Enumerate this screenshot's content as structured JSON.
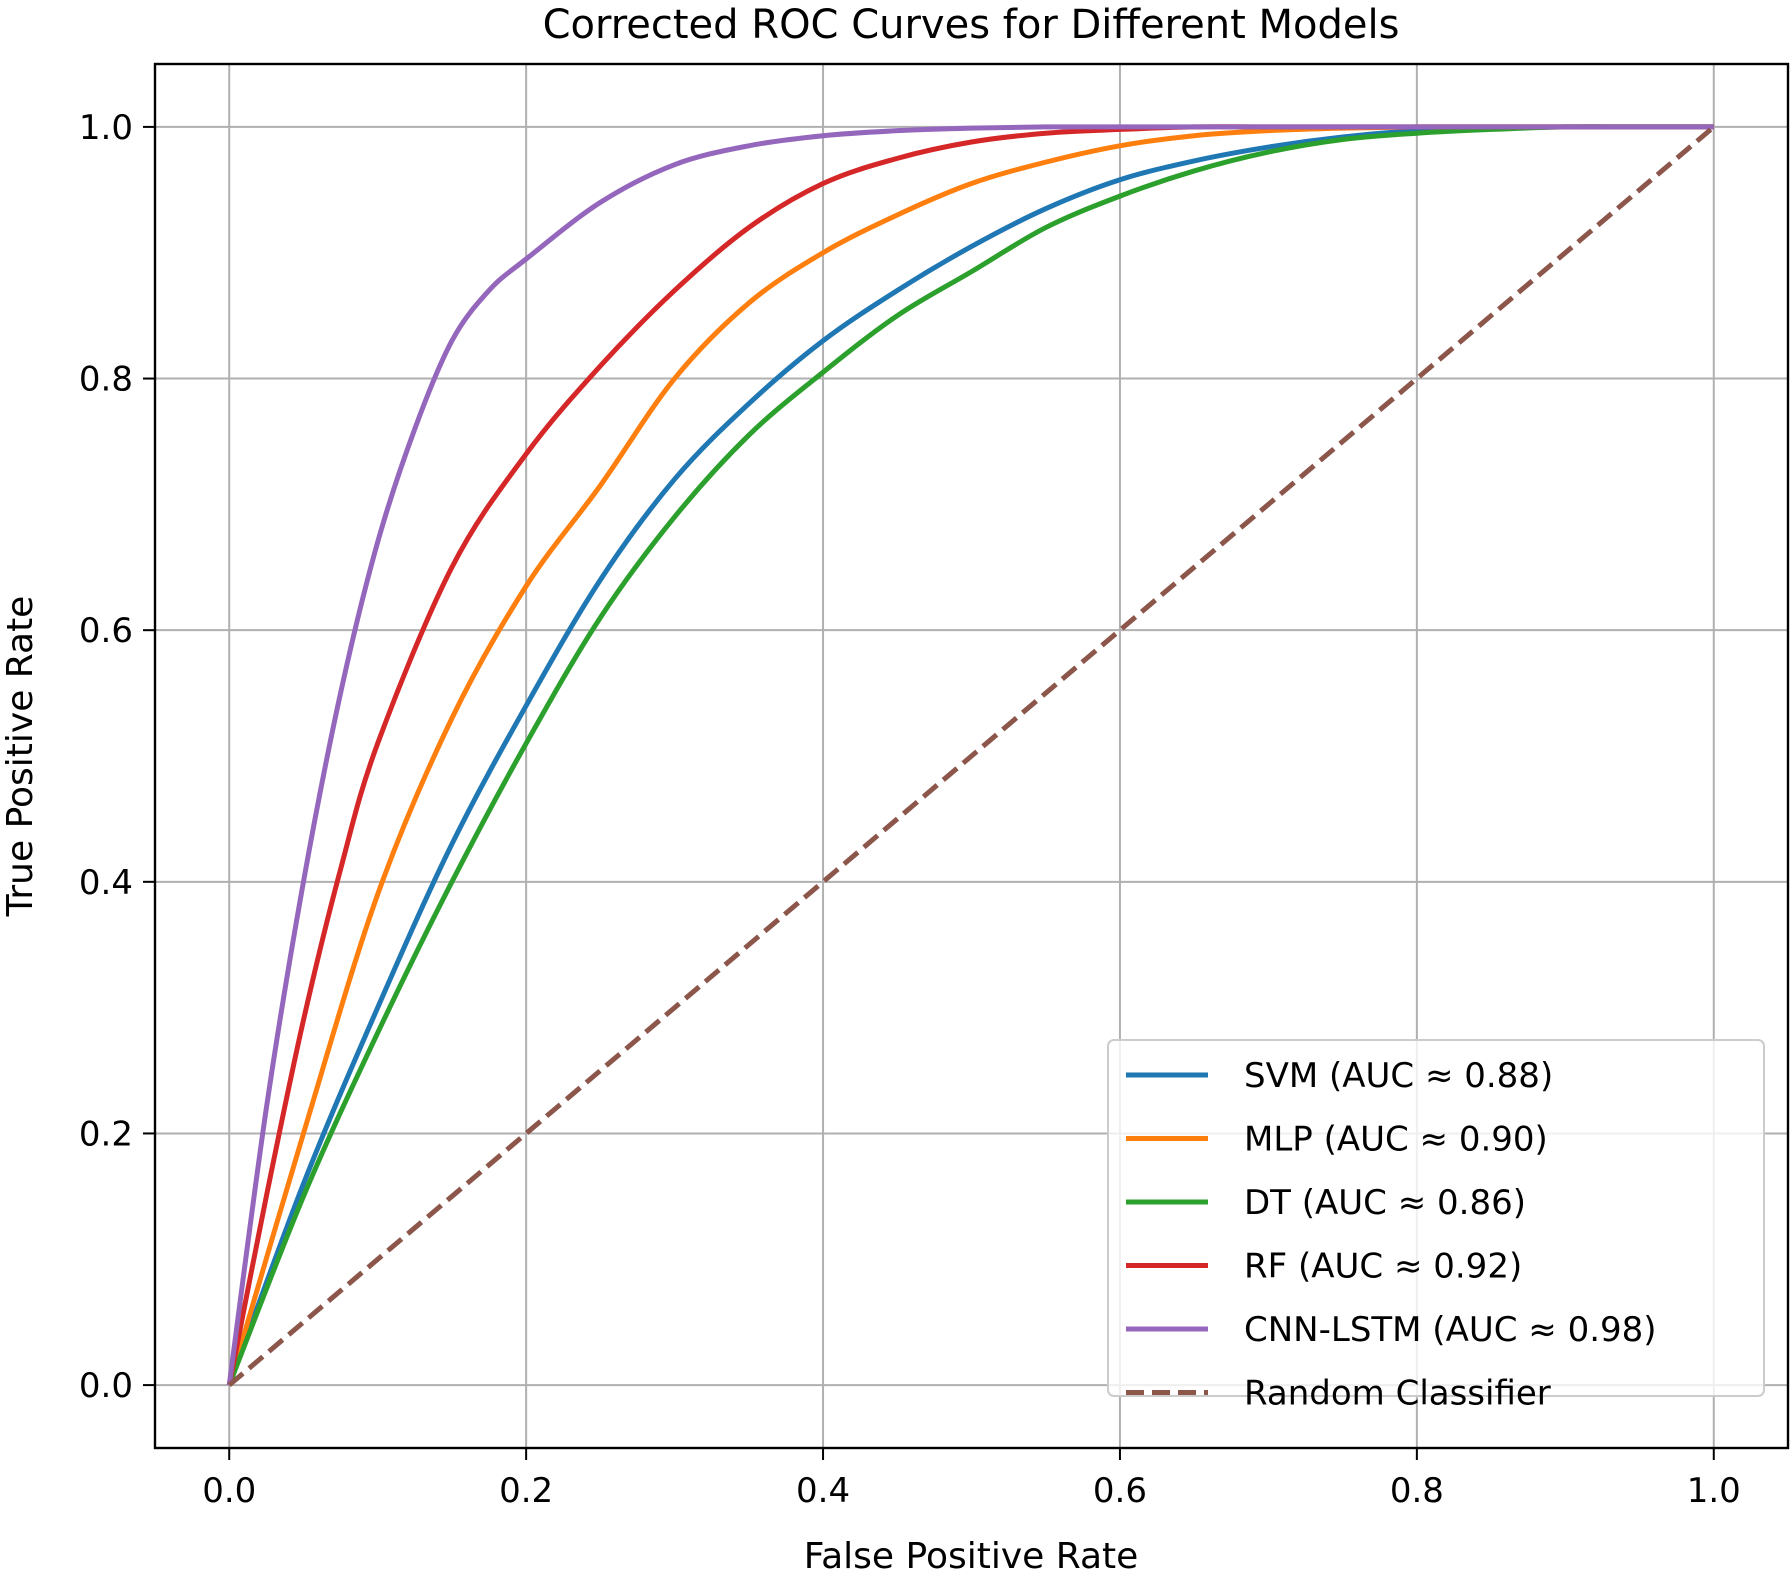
{
  "chart_data": {
    "type": "line",
    "title": "Corrected ROC Curves for Different Models",
    "xlabel": "False Positive Rate",
    "ylabel": "True Positive Rate",
    "xlim": [
      -0.05,
      1.05
    ],
    "ylim": [
      -0.05,
      1.05
    ],
    "xticks": [
      "0.0",
      "0.2",
      "0.4",
      "0.6",
      "0.8",
      "1.0"
    ],
    "yticks": [
      "0.0",
      "0.2",
      "0.4",
      "0.6",
      "0.8",
      "1.0"
    ],
    "grid": true,
    "legend_position": "lower right",
    "series": [
      {
        "name": "SVM (AUC ≈ 0.88)",
        "color": "#1f77b4",
        "style": "solid",
        "x": [
          0.0,
          0.05,
          0.1,
          0.15,
          0.2,
          0.25,
          0.3,
          0.35,
          0.4,
          0.45,
          0.5,
          0.55,
          0.6,
          0.65,
          0.7,
          0.75,
          0.8,
          0.85,
          0.9,
          0.95,
          1.0
        ],
        "y": [
          0.0,
          0.16,
          0.3,
          0.43,
          0.54,
          0.64,
          0.72,
          0.78,
          0.83,
          0.87,
          0.905,
          0.935,
          0.958,
          0.973,
          0.984,
          0.992,
          0.997,
          0.999,
          1.0,
          1.0,
          1.0
        ]
      },
      {
        "name": "MLP (AUC ≈ 0.90)",
        "color": "#ff7f0e",
        "style": "solid",
        "x": [
          0.0,
          0.05,
          0.1,
          0.15,
          0.2,
          0.25,
          0.3,
          0.35,
          0.4,
          0.45,
          0.5,
          0.55,
          0.6,
          0.65,
          0.7,
          0.75,
          0.8,
          0.85,
          0.9,
          0.95,
          1.0
        ],
        "y": [
          0.0,
          0.2,
          0.39,
          0.53,
          0.635,
          0.715,
          0.8,
          0.86,
          0.9,
          0.93,
          0.955,
          0.972,
          0.985,
          0.993,
          0.997,
          0.999,
          1.0,
          1.0,
          1.0,
          1.0,
          1.0
        ]
      },
      {
        "name": "DT (AUC ≈ 0.86)",
        "color": "#2ca02c",
        "style": "solid",
        "x": [
          0.0,
          0.05,
          0.1,
          0.15,
          0.2,
          0.25,
          0.3,
          0.35,
          0.4,
          0.45,
          0.5,
          0.55,
          0.6,
          0.65,
          0.7,
          0.75,
          0.8,
          0.85,
          0.9,
          0.95,
          1.0
        ],
        "y": [
          0.0,
          0.15,
          0.28,
          0.4,
          0.51,
          0.61,
          0.69,
          0.755,
          0.805,
          0.85,
          0.885,
          0.92,
          0.945,
          0.965,
          0.98,
          0.99,
          0.995,
          0.998,
          1.0,
          1.0,
          1.0
        ]
      },
      {
        "name": "RF (AUC ≈ 0.92)",
        "color": "#d62728",
        "style": "solid",
        "x": [
          0.0,
          0.025,
          0.05,
          0.075,
          0.1,
          0.15,
          0.2,
          0.25,
          0.3,
          0.35,
          0.4,
          0.45,
          0.5,
          0.55,
          0.6,
          0.65,
          0.7,
          0.8,
          0.9,
          1.0
        ],
        "y": [
          0.0,
          0.15,
          0.29,
          0.41,
          0.51,
          0.65,
          0.74,
          0.81,
          0.87,
          0.92,
          0.955,
          0.975,
          0.988,
          0.995,
          0.998,
          1.0,
          1.0,
          1.0,
          1.0,
          1.0
        ]
      },
      {
        "name": "CNN-LSTM (AUC ≈ 0.98)",
        "color": "#9467bd",
        "style": "solid",
        "x": [
          0.0,
          0.025,
          0.05,
          0.075,
          0.1,
          0.125,
          0.15,
          0.175,
          0.2,
          0.25,
          0.3,
          0.35,
          0.4,
          0.45,
          0.5,
          0.55,
          0.6,
          0.7,
          0.8,
          1.0
        ],
        "y": [
          0.0,
          0.22,
          0.4,
          0.55,
          0.67,
          0.76,
          0.83,
          0.87,
          0.895,
          0.94,
          0.97,
          0.985,
          0.993,
          0.997,
          0.999,
          1.0,
          1.0,
          1.0,
          1.0,
          1.0
        ]
      },
      {
        "name": "Random Classifier",
        "color": "#8c564b",
        "style": "dashed",
        "x": [
          0.0,
          1.0
        ],
        "y": [
          0.0,
          1.0
        ]
      }
    ]
  }
}
